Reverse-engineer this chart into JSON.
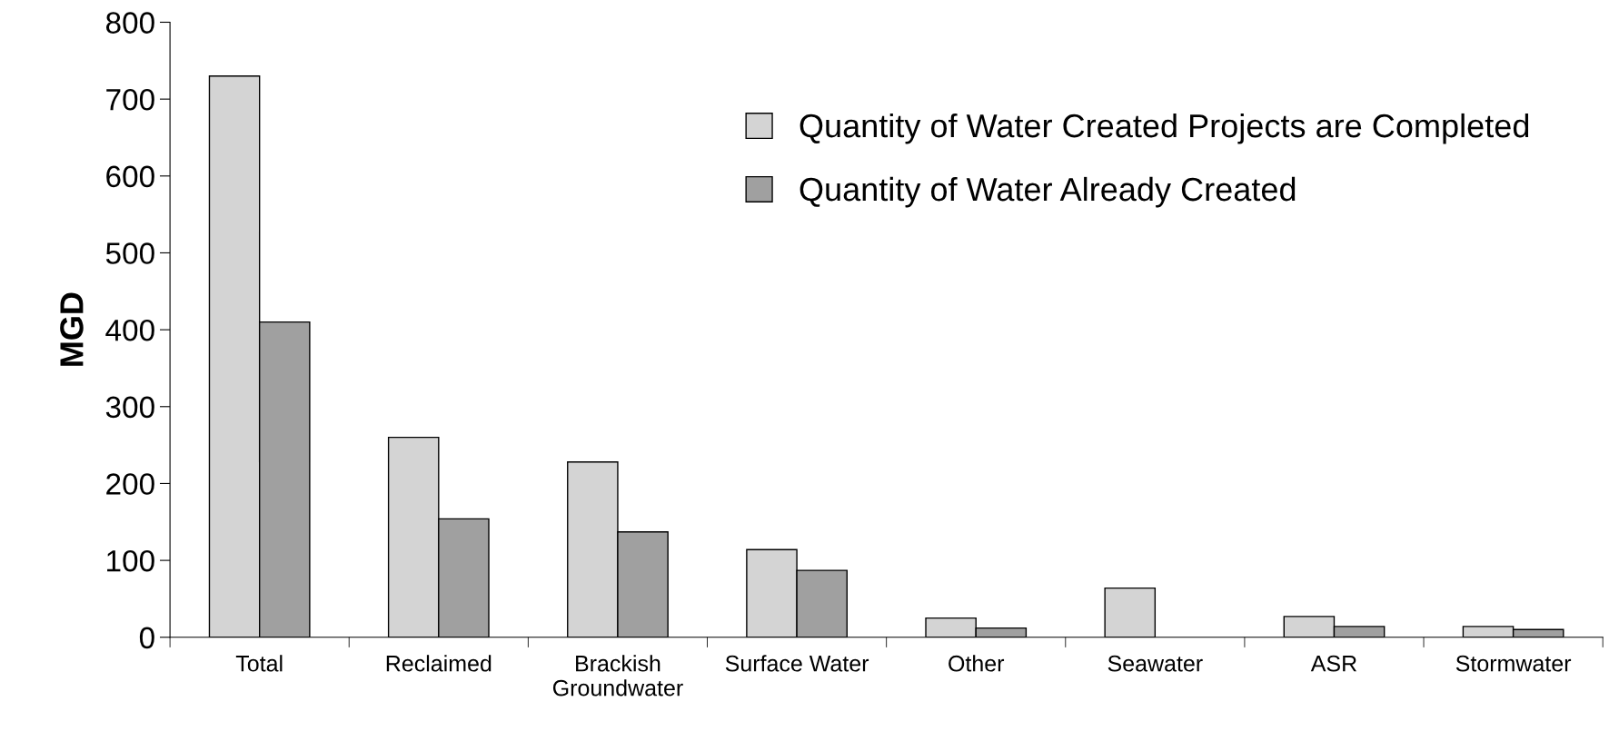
{
  "chart_data": {
    "type": "bar",
    "ylabel": "MGD",
    "categories": [
      "Total",
      "Reclaimed",
      "Brackish Groundwater",
      "Surface Water",
      "Other",
      "Seawater",
      "ASR",
      "Stormwater"
    ],
    "series": [
      {
        "name": "Quantity of Water Created Projects are Completed",
        "color": "#d4d4d4",
        "values": [
          730,
          260,
          228,
          114,
          25,
          64,
          27,
          14
        ]
      },
      {
        "name": "Quantity of Water Already Created",
        "color": "#a0a0a0",
        "values": [
          410,
          154,
          137,
          87,
          12,
          null,
          14,
          10
        ]
      }
    ],
    "ylim": [
      0,
      800
    ],
    "yticks": [
      0,
      100,
      200,
      300,
      400,
      500,
      600,
      700,
      800
    ],
    "grid": false,
    "legend": "top right"
  }
}
